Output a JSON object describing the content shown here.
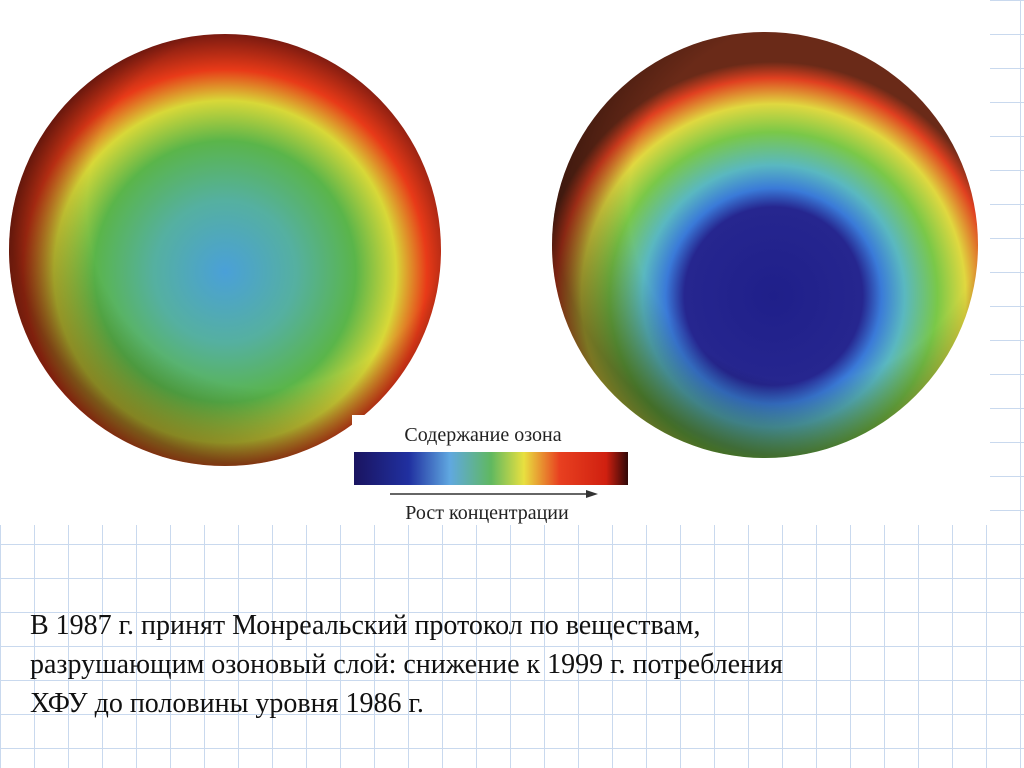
{
  "image": {
    "legend_title": "Содержание озона",
    "legend_axis": "Рост концентрации"
  },
  "body": {
    "lines": [
      "В 1987 г. принят Монреальский протокол по веществам,",
      "разрушающим озоновый слой: снижение к 1999 г. потребления",
      "ХФУ до половины уровня 1986 г."
    ]
  }
}
